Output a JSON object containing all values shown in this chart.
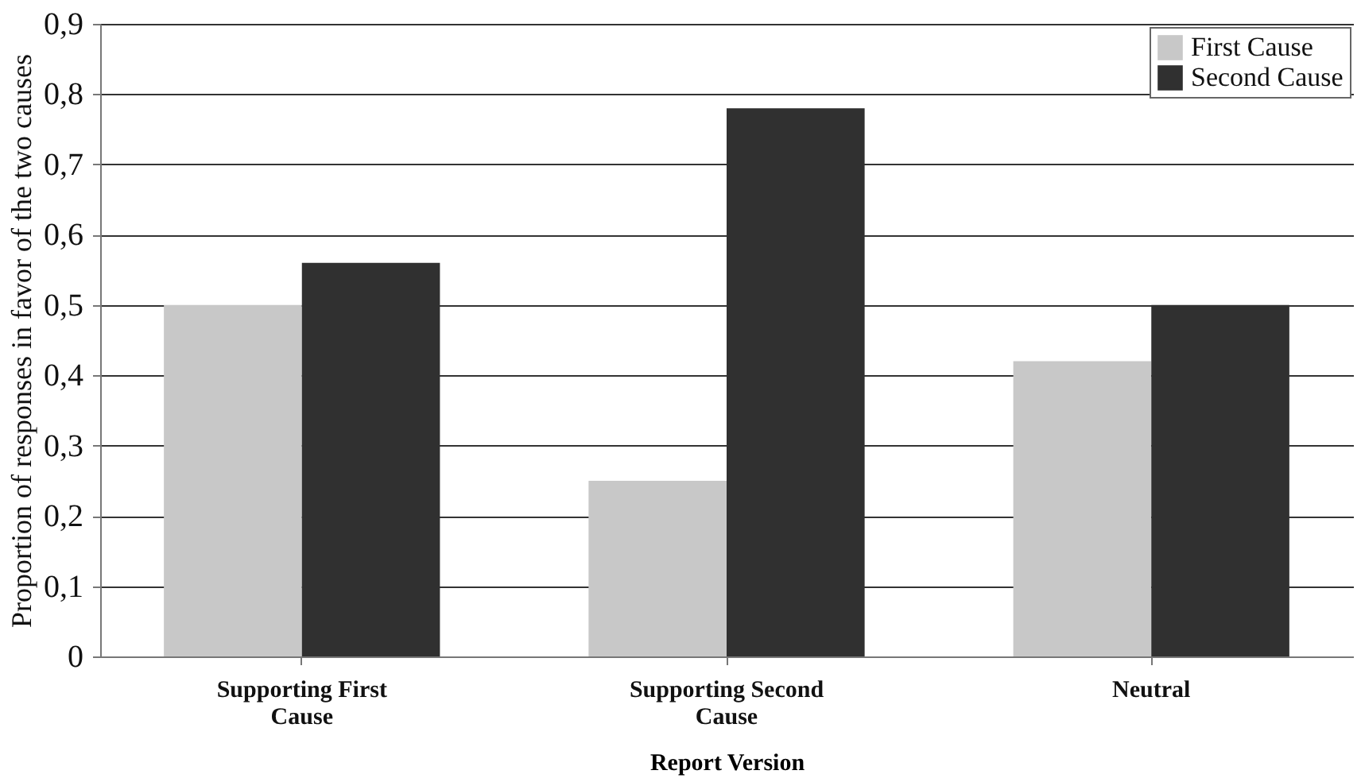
{
  "chart_data": {
    "type": "bar",
    "xlabel": "Report Version",
    "ylabel": "Proportion of responses in favor of the two causes",
    "categories": [
      "Supporting First Cause",
      "Supporting Second Cause",
      "Neutral"
    ],
    "series": [
      {
        "name": "First Cause",
        "color": "#c8c8c8",
        "values": [
          0.5,
          0.25,
          0.42
        ]
      },
      {
        "name": "Second Cause",
        "color": "#303030",
        "values": [
          0.56,
          0.78,
          0.5
        ]
      }
    ],
    "ylim": [
      0,
      0.9
    ],
    "yticks": [
      0,
      {
        "value": 0.1,
        "label": "0,1"
      },
      {
        "value": 0.2,
        "label": "0,2"
      },
      {
        "value": 0.3,
        "label": "0,3"
      },
      {
        "value": 0.4,
        "label": "0,4"
      },
      {
        "value": 0.5,
        "label": "0,5"
      },
      {
        "value": 0.6,
        "label": "0,6"
      },
      {
        "value": 0.7,
        "label": "0,7"
      },
      {
        "value": 0.8,
        "label": "0,8"
      },
      {
        "value": 0.9,
        "label": "0,9"
      }
    ],
    "grid": "y",
    "legend": "top right"
  }
}
